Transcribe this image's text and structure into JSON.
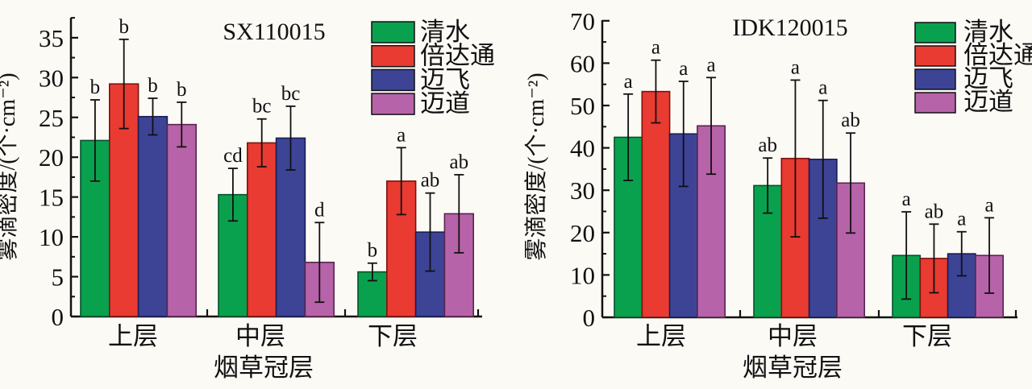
{
  "figure": {
    "background": "#fcfaf5",
    "axis_color": "#111111",
    "error_bar_color": "#111111"
  },
  "chart_data": [
    {
      "type": "bar",
      "title": "SX110015",
      "xlabel": "烟草冠层",
      "ylabel": "雾滴密度/(个·cm⁻²)",
      "ylim": [
        0,
        35
      ],
      "ytick_step": 5,
      "yminor_step": 2.5,
      "yminor_max": 37.5,
      "grid": false,
      "legend_position": "top-right",
      "categories": [
        "上层",
        "中层",
        "下层"
      ],
      "series": [
        {
          "name": "清水",
          "color": "#0aa14e",
          "edge": "#05502a",
          "values": [
            22.1,
            15.3,
            5.6
          ],
          "errors": [
            5.1,
            3.3,
            1.1
          ],
          "sig_letters": [
            "b",
            "cd",
            "b"
          ]
        },
        {
          "name": "倍达通",
          "color": "#e93b31",
          "edge": "#7c120d",
          "values": [
            29.2,
            21.8,
            17.0
          ],
          "errors": [
            5.6,
            3.0,
            4.2
          ],
          "sig_letters": [
            "b",
            "bc",
            "a"
          ]
        },
        {
          "name": "迈飞",
          "color": "#3d4496",
          "edge": "#191d55",
          "values": [
            25.1,
            22.4,
            10.6
          ],
          "errors": [
            2.3,
            4.0,
            4.9
          ],
          "sig_letters": [
            "b",
            "bc",
            "ab"
          ]
        },
        {
          "name": "迈道",
          "color": "#b763a9",
          "edge": "#59244f",
          "values": [
            24.1,
            6.8,
            12.9
          ],
          "errors": [
            2.8,
            5.0,
            4.9
          ],
          "sig_letters": [
            "b",
            "d",
            "ab"
          ]
        }
      ]
    },
    {
      "type": "bar",
      "title": "IDK120015",
      "xlabel": "烟草冠层",
      "ylabel": "雾滴密度/(个·cm⁻²)",
      "ylim": [
        0,
        70
      ],
      "ytick_step": 10,
      "yminor_step": 5,
      "yminor_max": 65,
      "grid": false,
      "legend_position": "top-right",
      "categories": [
        "上层",
        "中层",
        "下层"
      ],
      "series": [
        {
          "name": "清水",
          "color": "#0aa14e",
          "edge": "#05502a",
          "values": [
            42.5,
            31.1,
            14.6
          ],
          "errors": [
            10.2,
            6.5,
            10.3
          ],
          "sig_letters": [
            "a",
            "ab",
            "a"
          ]
        },
        {
          "name": "倍达通",
          "color": "#e93b31",
          "edge": "#7c120d",
          "values": [
            53.3,
            37.5,
            13.9
          ],
          "errors": [
            7.4,
            18.5,
            8.1
          ],
          "sig_letters": [
            "a",
            "a",
            "ab"
          ]
        },
        {
          "name": "迈飞",
          "color": "#3d4496",
          "edge": "#191d55",
          "values": [
            43.3,
            37.3,
            15.0
          ],
          "errors": [
            12.4,
            13.9,
            5.2
          ],
          "sig_letters": [
            "a",
            "a",
            "a"
          ]
        },
        {
          "name": "迈道",
          "color": "#b763a9",
          "edge": "#59244f",
          "values": [
            45.2,
            31.7,
            14.6
          ],
          "errors": [
            11.4,
            11.8,
            8.9
          ],
          "sig_letters": [
            "a",
            "ab",
            "a"
          ]
        }
      ]
    }
  ]
}
